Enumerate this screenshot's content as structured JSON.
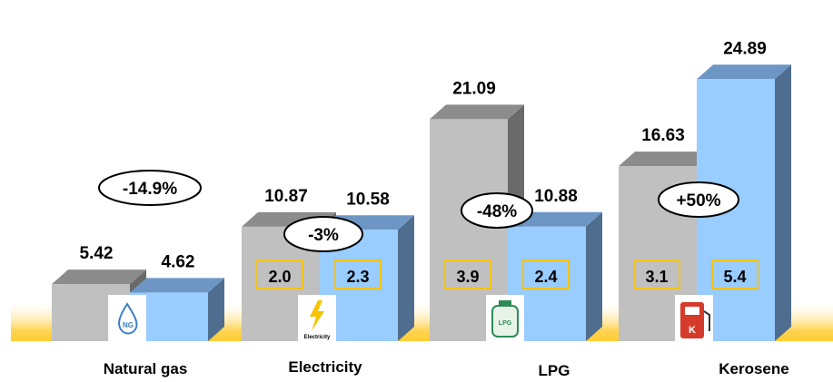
{
  "chart_data": {
    "type": "bar",
    "categories": [
      "Natural gas",
      "Electricity",
      "LPG",
      "Kerosene"
    ],
    "series": [
      {
        "values": [
          5.42,
          10.87,
          21.09,
          16.63
        ]
      },
      {
        "values": [
          4.62,
          10.58,
          10.88,
          24.89
        ]
      }
    ],
    "value_labels": [
      [
        "5.42",
        "4.62"
      ],
      [
        "10.87",
        "10.58"
      ],
      [
        "21.09",
        "10.88"
      ],
      [
        "16.63",
        "24.89"
      ]
    ],
    "inner_labels": [
      null,
      [
        "2.0",
        "2.3"
      ],
      [
        "3.9",
        "2.4"
      ],
      [
        "3.1",
        "5.4"
      ]
    ],
    "change_labels": [
      "-14.9%",
      "-3%",
      "-48%",
      "+50%"
    ],
    "icons": [
      {
        "name": "natural-gas-icon",
        "text": "NG"
      },
      {
        "name": "electricity-icon",
        "text": "Electricity"
      },
      {
        "name": "lpg-icon",
        "text": "LPG"
      },
      {
        "name": "kerosene-icon",
        "text": "K"
      }
    ],
    "colors": {
      "series1_front": "#c0c0c0",
      "series1_top": "#8c8c8c",
      "series1_side": "#6a6a6a",
      "series2_front": "#99ccff",
      "series2_top": "#6d96c4",
      "series2_side": "#4f6d8f",
      "inner_box": "#f2c21b",
      "floor": "#ffcc33"
    }
  }
}
